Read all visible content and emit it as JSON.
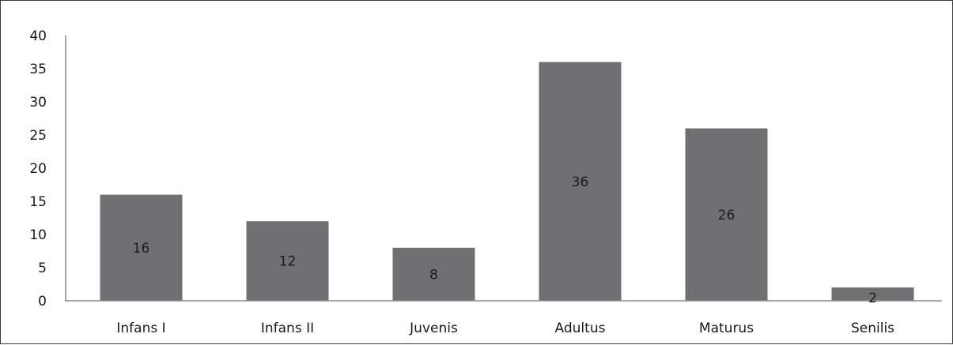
{
  "chart_data": {
    "type": "bar",
    "categories": [
      "Infans I",
      "Infans II",
      "Juvenis",
      "Adultus",
      "Maturus",
      "Senilis"
    ],
    "values": [
      16,
      12,
      8,
      36,
      26,
      2
    ],
    "data_labels": [
      "16",
      "12",
      "8",
      "36",
      "26",
      "2"
    ],
    "yticks": [
      "0",
      "5",
      "10",
      "15",
      "20",
      "25",
      "30",
      "35",
      "40"
    ],
    "ylim": [
      0,
      40
    ],
    "grid": false,
    "legend": "none",
    "bar_color": "#707073",
    "axis_color": "#8c8c8c"
  }
}
